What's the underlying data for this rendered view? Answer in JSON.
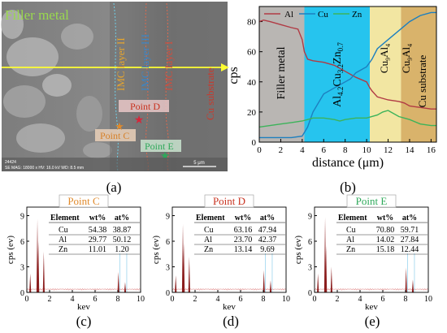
{
  "figure": {
    "panel_labels": [
      "(a)",
      "(b)",
      "(c)",
      "(d)",
      "(e)"
    ],
    "colors": {
      "al": "#b13a44",
      "cu": "#1d7fbf",
      "zn": "#3cb35a",
      "filler_band": "#b9b6b3",
      "imc_band": "#26c4ee",
      "cu9al4_band": "#f2e6a2",
      "cusub_band": "#d9b36b",
      "spectrum": "#8b1d1d",
      "point_c": "#e08a2c",
      "point_d": "#c8321f",
      "point_e": "#2ea95a"
    }
  },
  "sem": {
    "labels": {
      "filler_metal": "Filler metal",
      "imc2": "IMC layer II",
      "imc3": "IMC layer III",
      "imc1": "IMC layer I",
      "cu_substrate": "Cu substrate",
      "point_c": "Point C",
      "point_d": "Point D",
      "point_e": "Point E"
    },
    "footer": {
      "line1": "24424",
      "line2": "SE MAG: 18000 x  HV: 16.0 kV  WD: 8.5 mm",
      "scale": "5 μm"
    }
  },
  "line_scan": {
    "ylabel": "cps",
    "xlabel": "distance (μm)",
    "x_ticks": [
      "0",
      "2",
      "4",
      "6",
      "8",
      "10",
      "12",
      "14",
      "16"
    ],
    "y_ticks": [
      "0",
      "20",
      "40",
      "60",
      "80"
    ],
    "legend": [
      "Al",
      "Cu",
      "Zn"
    ],
    "regions": {
      "filler": "Filler metal",
      "imc_main": "Al",
      "imc_sub1": "4.2",
      "imc_mid": "Cu",
      "imc_sub2": "3.2",
      "imc_mid2": "Zn",
      "imc_sub3": "0.7",
      "cu9al4_a": "Cu",
      "cu9al4_sub": "9",
      "cu9al4_b": "Al",
      "cu9al4_sub2": "4",
      "cusub": "Cu substrate"
    }
  },
  "chart_data": [
    {
      "type": "line",
      "x_unit": "μm",
      "xlim": [
        0,
        16.5
      ],
      "ylim": [
        0,
        90
      ],
      "series": [
        {
          "name": "Al",
          "x": [
            0,
            0.4,
            1,
            2,
            3,
            3.6,
            4,
            4.2,
            4.5,
            5,
            6,
            7,
            8,
            9,
            10,
            10.3,
            10.5,
            11,
            12,
            13,
            13.5,
            14,
            15,
            16,
            16.5
          ],
          "y": [
            80,
            81,
            80,
            78,
            76,
            75,
            68,
            60,
            55,
            54,
            53,
            51,
            47,
            43,
            40,
            36,
            34,
            30,
            28,
            27,
            26,
            24,
            23,
            22,
            22
          ]
        },
        {
          "name": "Cu",
          "x": [
            0,
            1,
            2,
            3,
            4,
            4.5,
            5,
            6,
            7,
            8,
            8.5,
            9,
            10,
            10.5,
            11,
            12,
            13,
            14,
            15,
            16,
            16.5
          ],
          "y": [
            3,
            3,
            3,
            3,
            4,
            10,
            20,
            32,
            36,
            40,
            42,
            46,
            50,
            55,
            62,
            68,
            74,
            80,
            84,
            86,
            86
          ]
        },
        {
          "name": "Zn",
          "x": [
            0,
            1,
            2,
            3,
            4,
            4.5,
            5,
            6,
            7,
            7.5,
            8,
            9,
            10,
            11,
            11.5,
            12,
            13,
            14,
            15,
            16,
            16.5
          ],
          "y": [
            10,
            11,
            12,
            13,
            14,
            15,
            16,
            16,
            15,
            14,
            15,
            16,
            16,
            18,
            20,
            21,
            17,
            15,
            12,
            11,
            11
          ]
        }
      ],
      "regions_x": [
        [
          0,
          4.2
        ],
        [
          4.2,
          10.3
        ],
        [
          10.3,
          13.2
        ],
        [
          13.2,
          16.5
        ]
      ]
    },
    {
      "type": "bar",
      "title": "Point C",
      "xlabel": "kev",
      "ylabel": "cps (ev)",
      "xlim": [
        0,
        10
      ],
      "ylim": [
        0,
        10
      ],
      "x_ticks": [
        "0",
        "2",
        "4",
        "6",
        "8",
        "10"
      ],
      "y_ticks": [
        "0",
        "3",
        "6",
        "9"
      ],
      "peaks": [
        {
          "x": 0.3,
          "y": 2.2
        },
        {
          "x": 0.93,
          "y": 8.6
        },
        {
          "x": 1.01,
          "y": 6.0
        },
        {
          "x": 1.49,
          "y": 4.8
        },
        {
          "x": 8.05,
          "y": 2.4
        },
        {
          "x": 8.64,
          "y": 1.2
        }
      ],
      "table": {
        "headers": [
          "Element",
          "wt%",
          "at%"
        ],
        "rows": [
          [
            "Cu",
            "54.38",
            "38.87"
          ],
          [
            "Al",
            "29.77",
            "50.12"
          ],
          [
            "Zn",
            "11.01",
            "1.20"
          ]
        ]
      }
    },
    {
      "type": "bar",
      "title": "Point D",
      "xlabel": "kev",
      "ylabel": "cps (ev)",
      "xlim": [
        0,
        10
      ],
      "ylim": [
        0,
        10
      ],
      "x_ticks": [
        "0",
        "2",
        "4",
        "6",
        "8",
        "10"
      ],
      "y_ticks": [
        "0",
        "3",
        "6",
        "9"
      ],
      "peaks": [
        {
          "x": 0.3,
          "y": 2.0
        },
        {
          "x": 0.93,
          "y": 8.0
        },
        {
          "x": 1.01,
          "y": 5.8
        },
        {
          "x": 1.49,
          "y": 4.2
        },
        {
          "x": 8.05,
          "y": 2.6
        },
        {
          "x": 8.64,
          "y": 1.4
        }
      ],
      "table": {
        "headers": [
          "Element",
          "wt%",
          "at%"
        ],
        "rows": [
          [
            "Cu",
            "63.16",
            "47.94"
          ],
          [
            "Al",
            "23.70",
            "42.37"
          ],
          [
            "Zn",
            "13.14",
            "9.69"
          ]
        ]
      }
    },
    {
      "type": "bar",
      "title": "Point E",
      "xlabel": "kev",
      "ylabel": "cps (ev)",
      "xlim": [
        0,
        10
      ],
      "ylim": [
        0,
        10
      ],
      "x_ticks": [
        "0",
        "2",
        "4",
        "6",
        "8",
        "10"
      ],
      "y_ticks": [
        "0",
        "3",
        "6",
        "9"
      ],
      "peaks": [
        {
          "x": 0.3,
          "y": 2.2
        },
        {
          "x": 0.93,
          "y": 8.8
        },
        {
          "x": 1.01,
          "y": 5.5
        },
        {
          "x": 1.49,
          "y": 3.0
        },
        {
          "x": 8.05,
          "y": 2.9
        },
        {
          "x": 8.64,
          "y": 1.5
        }
      ],
      "table": {
        "headers": [
          "Element",
          "wt%",
          "at%"
        ],
        "rows": [
          [
            "Cu",
            "70.80",
            "59.71"
          ],
          [
            "Al",
            "14.02",
            "27.84"
          ],
          [
            "Zn",
            "15.18",
            "12.44"
          ]
        ]
      }
    }
  ]
}
